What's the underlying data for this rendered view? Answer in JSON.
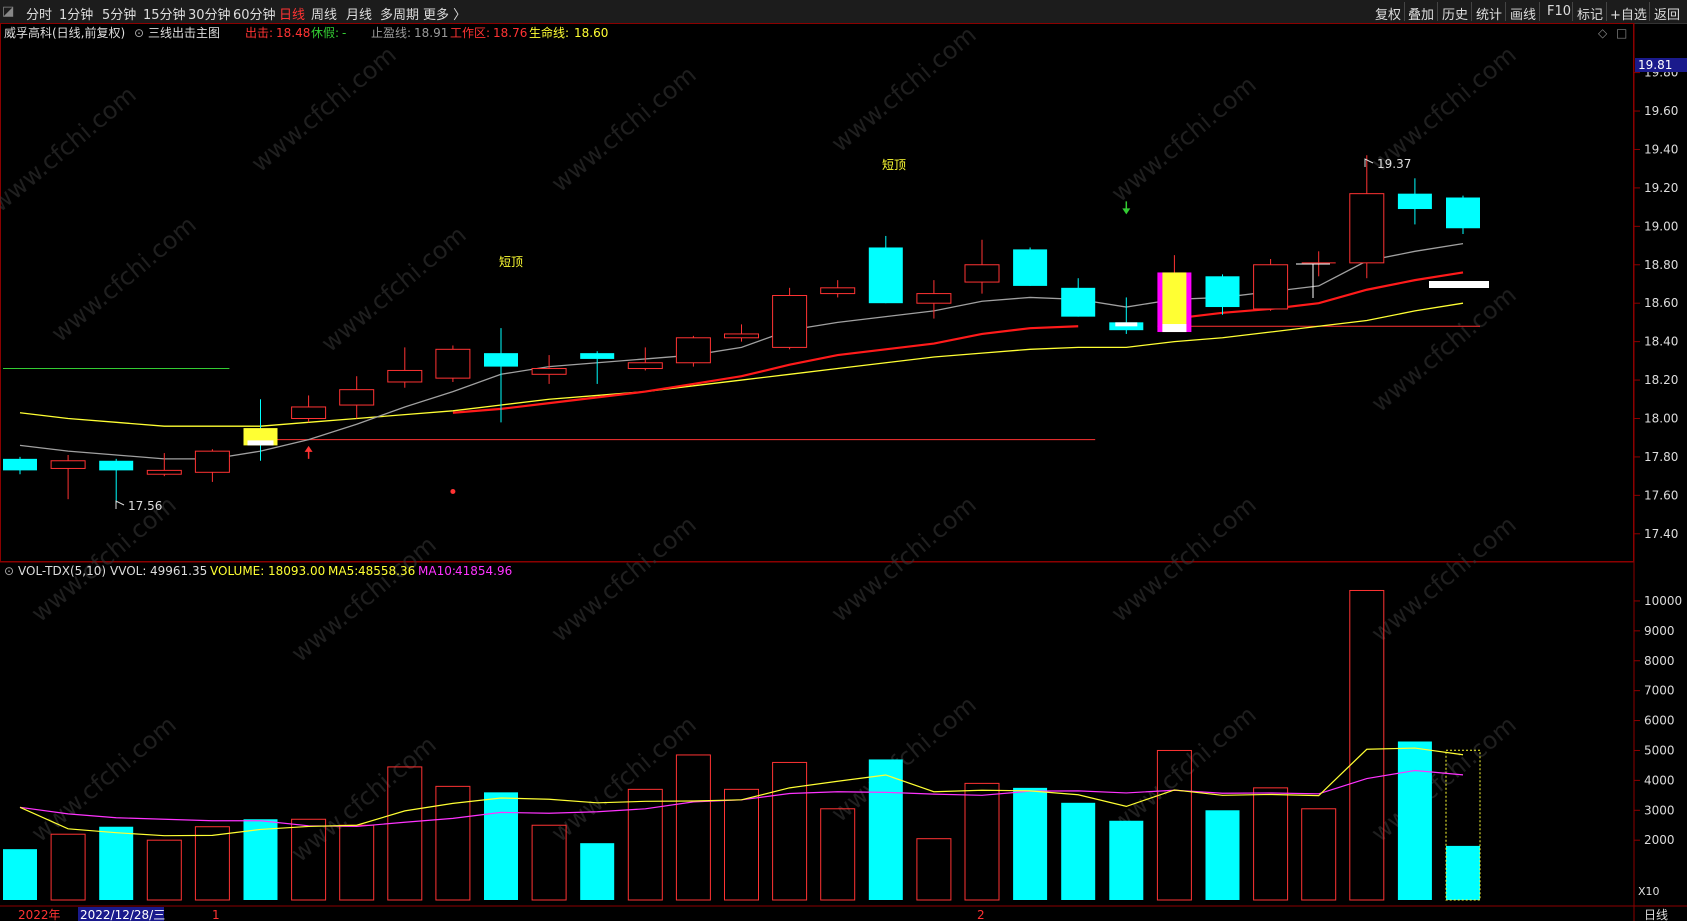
{
  "toolbar": {
    "periods": [
      "分时",
      "1分钟",
      "5分钟",
      "15分钟",
      "30分钟",
      "60分钟",
      "日线",
      "周线",
      "月线",
      "多周期",
      "更多 〉"
    ],
    "active_period": "日线",
    "right_buttons": [
      "复权",
      "叠加",
      "历史",
      "统计",
      "画线",
      "F10",
      "标记",
      "+自选",
      "返回"
    ]
  },
  "main_legend": {
    "stock": "威孚高科(日线,前复权)",
    "indicator": "三线出击主图",
    "items": [
      {
        "label": "出击:",
        "value": "18.48",
        "color": "#ff3333"
      },
      {
        "label": "休假:",
        "value": "-",
        "color": "#33cc33"
      },
      {
        "label": "止盈线:",
        "value": "18.91",
        "color": "#9a9a9a"
      },
      {
        "label": "工作区:",
        "value": "18.76",
        "color": "#ff3333"
      },
      {
        "label": "生命线:",
        "value": "18.60",
        "color": "#ffff33"
      }
    ]
  },
  "vol_legend": {
    "indicator": "VOL-TDX(5,10)",
    "items": [
      {
        "label": "VVOL:",
        "value": "49961.35",
        "color": "#dddddd"
      },
      {
        "label": "VOLUME:",
        "value": "18093.00",
        "color": "#ffff33"
      },
      {
        "label": "MA5:",
        "value": "48558.36",
        "color": "#ffff33"
      },
      {
        "label": "MA10:",
        "value": "41854.96",
        "color": "#ff33ff"
      }
    ]
  },
  "price_axis": {
    "ticks": [
      "19.80",
      "19.60",
      "19.40",
      "19.20",
      "19.00",
      "18.80",
      "18.60",
      "18.40",
      "18.20",
      "18.00",
      "17.80",
      "17.60",
      "17.40"
    ],
    "current": "19.81"
  },
  "vol_axis": {
    "ticks": [
      "10000",
      "9000",
      "8000",
      "7000",
      "6000",
      "5000",
      "4000",
      "3000",
      "2000"
    ],
    "unit": "X10"
  },
  "bottom_axis": {
    "year": "2022年",
    "cursor_date": "2022/12/28/三",
    "month_marks": [
      "1",
      "2"
    ],
    "period_label": "日线"
  },
  "annotations": {
    "low_label": "17.56",
    "high_label": "19.37",
    "top_signal_1": "短顶",
    "top_signal_2": "短顶"
  },
  "colors": {
    "up": "#ff3333",
    "down": "#00ffff",
    "ma_gray": "#a0a0a0",
    "ma_red": "#ff1a1a",
    "ma_yellow": "#ffff33",
    "vol_ma10": "#ff33ff"
  },
  "chart_data": {
    "type": "candlestick",
    "candles": [
      {
        "o": 17.79,
        "c": 17.73,
        "h": 17.8,
        "l": 17.71
      },
      {
        "o": 17.74,
        "c": 17.78,
        "h": 17.81,
        "l": 17.58
      },
      {
        "o": 17.78,
        "c": 17.73,
        "h": 17.79,
        "l": 17.56
      },
      {
        "o": 17.71,
        "c": 17.73,
        "h": 17.82,
        "l": 17.7
      },
      {
        "o": 17.72,
        "c": 17.83,
        "h": 17.84,
        "l": 17.67
      },
      {
        "o": 17.95,
        "c": 17.86,
        "h": 18.1,
        "l": 17.78,
        "special": "yellow"
      },
      {
        "o": 18.0,
        "c": 18.06,
        "h": 18.12,
        "l": 17.98
      },
      {
        "o": 18.07,
        "c": 18.15,
        "h": 18.22,
        "l": 18.0
      },
      {
        "o": 18.19,
        "c": 18.25,
        "h": 18.37,
        "l": 18.16
      },
      {
        "o": 18.21,
        "c": 18.36,
        "h": 18.38,
        "l": 18.19
      },
      {
        "o": 18.34,
        "c": 18.27,
        "h": 18.47,
        "l": 17.98
      },
      {
        "o": 18.23,
        "c": 18.26,
        "h": 18.33,
        "l": 18.18
      },
      {
        "o": 18.34,
        "c": 18.31,
        "h": 18.35,
        "l": 18.18
      },
      {
        "o": 18.26,
        "c": 18.29,
        "h": 18.37,
        "l": 18.25
      },
      {
        "o": 18.29,
        "c": 18.42,
        "h": 18.43,
        "l": 18.27
      },
      {
        "o": 18.42,
        "c": 18.44,
        "h": 18.49,
        "l": 18.4
      },
      {
        "o": 18.37,
        "c": 18.64,
        "h": 18.68,
        "l": 18.36
      },
      {
        "o": 18.65,
        "c": 18.68,
        "h": 18.72,
        "l": 18.63
      },
      {
        "o": 18.89,
        "c": 18.6,
        "h": 18.95,
        "l": 18.6
      },
      {
        "o": 18.6,
        "c": 18.65,
        "h": 18.72,
        "l": 18.52
      },
      {
        "o": 18.71,
        "c": 18.8,
        "h": 18.93,
        "l": 18.65
      },
      {
        "o": 18.88,
        "c": 18.69,
        "h": 18.89,
        "l": 18.69
      },
      {
        "o": 18.68,
        "c": 18.53,
        "h": 18.73,
        "l": 18.53
      },
      {
        "o": 18.49,
        "c": 18.47,
        "h": 18.63,
        "l": 18.44,
        "special": "white"
      },
      {
        "o": 18.45,
        "c": 18.76,
        "h": 18.85,
        "l": 18.45,
        "special": "magenta"
      },
      {
        "o": 18.74,
        "c": 18.58,
        "h": 18.75,
        "l": 18.54
      },
      {
        "o": 18.57,
        "c": 18.8,
        "h": 18.83,
        "l": 18.56
      },
      {
        "o": 18.81,
        "c": 18.81,
        "h": 18.87,
        "l": 18.74,
        "special": "doji"
      },
      {
        "o": 18.81,
        "c": 19.17,
        "h": 19.37,
        "l": 18.73
      },
      {
        "o": 19.17,
        "c": 19.09,
        "h": 19.25,
        "l": 19.01
      },
      {
        "o": 19.15,
        "c": 18.99,
        "h": 19.16,
        "l": 18.96
      }
    ],
    "line_gray": [
      17.86,
      17.83,
      17.81,
      17.79,
      17.79,
      17.83,
      17.89,
      17.97,
      18.06,
      18.14,
      18.23,
      18.27,
      18.29,
      18.31,
      18.33,
      18.37,
      18.46,
      18.5,
      18.53,
      18.56,
      18.61,
      18.63,
      18.62,
      18.58,
      18.62,
      18.63,
      18.66,
      18.69,
      18.82,
      18.87,
      18.91
    ],
    "line_red": [
      null,
      null,
      null,
      null,
      null,
      null,
      null,
      null,
      null,
      18.03,
      18.05,
      18.08,
      18.11,
      18.14,
      18.18,
      18.22,
      18.28,
      18.33,
      18.36,
      18.39,
      18.44,
      18.47,
      18.48,
      null,
      18.52,
      18.55,
      18.57,
      18.6,
      18.67,
      18.72,
      18.76
    ],
    "line_yellow": [
      18.03,
      18.0,
      17.98,
      17.96,
      17.96,
      17.96,
      17.98,
      18.0,
      18.02,
      18.04,
      18.07,
      18.1,
      18.12,
      18.14,
      18.17,
      18.2,
      18.23,
      18.26,
      18.29,
      18.32,
      18.34,
      18.36,
      18.37,
      18.37,
      18.4,
      18.42,
      18.45,
      18.48,
      18.51,
      18.56,
      18.6
    ],
    "level_lines": [
      {
        "value": 18.26,
        "from": 0,
        "to": 4,
        "color": "#33cc33"
      },
      {
        "value": 17.89,
        "from": 5,
        "to": 22,
        "color": "#ff3333"
      },
      {
        "value": 18.48,
        "from": 24,
        "to": 30,
        "color": "#ff3333"
      }
    ],
    "signals": [
      {
        "index": 6,
        "type": "buy",
        "price": 17.79
      },
      {
        "index": 9,
        "type": "dot",
        "price": 17.62
      },
      {
        "index": 23,
        "type": "sell",
        "price": 19.13
      }
    ],
    "volume": [
      1700,
      2200,
      2450,
      2000,
      2450,
      2700,
      2700,
      2500,
      4450,
      3800,
      3600,
      2500,
      1900,
      3700,
      4850,
      3700,
      4600,
      3050,
      4700,
      2050,
      3900,
      3750,
      3250,
      2650,
      5000,
      3000,
      3750,
      3050,
      10350,
      5300,
      1809
    ],
    "vol_ma5": [
      3100,
      2380,
      2250,
      2150,
      2160,
      2360,
      2460,
      2500,
      2980,
      3230,
      3410,
      3370,
      3250,
      3300,
      3310,
      3350,
      3750,
      3970,
      4180,
      3620,
      3670,
      3650,
      3520,
      3130,
      3680,
      3500,
      3530,
      3490,
      5040,
      5080,
      4856
    ],
    "vol_ma10": [
      3100,
      2880,
      2750,
      2700,
      2650,
      2650,
      2480,
      2460,
      2600,
      2730,
      2930,
      2900,
      2950,
      3050,
      3280,
      3350,
      3560,
      3620,
      3600,
      3540,
      3500,
      3640,
      3650,
      3580,
      3670,
      3570,
      3580,
      3550,
      4060,
      4330,
      4185
    ],
    "price_range": [
      17.3,
      19.85
    ],
    "volume_range": [
      0,
      10600
    ]
  }
}
